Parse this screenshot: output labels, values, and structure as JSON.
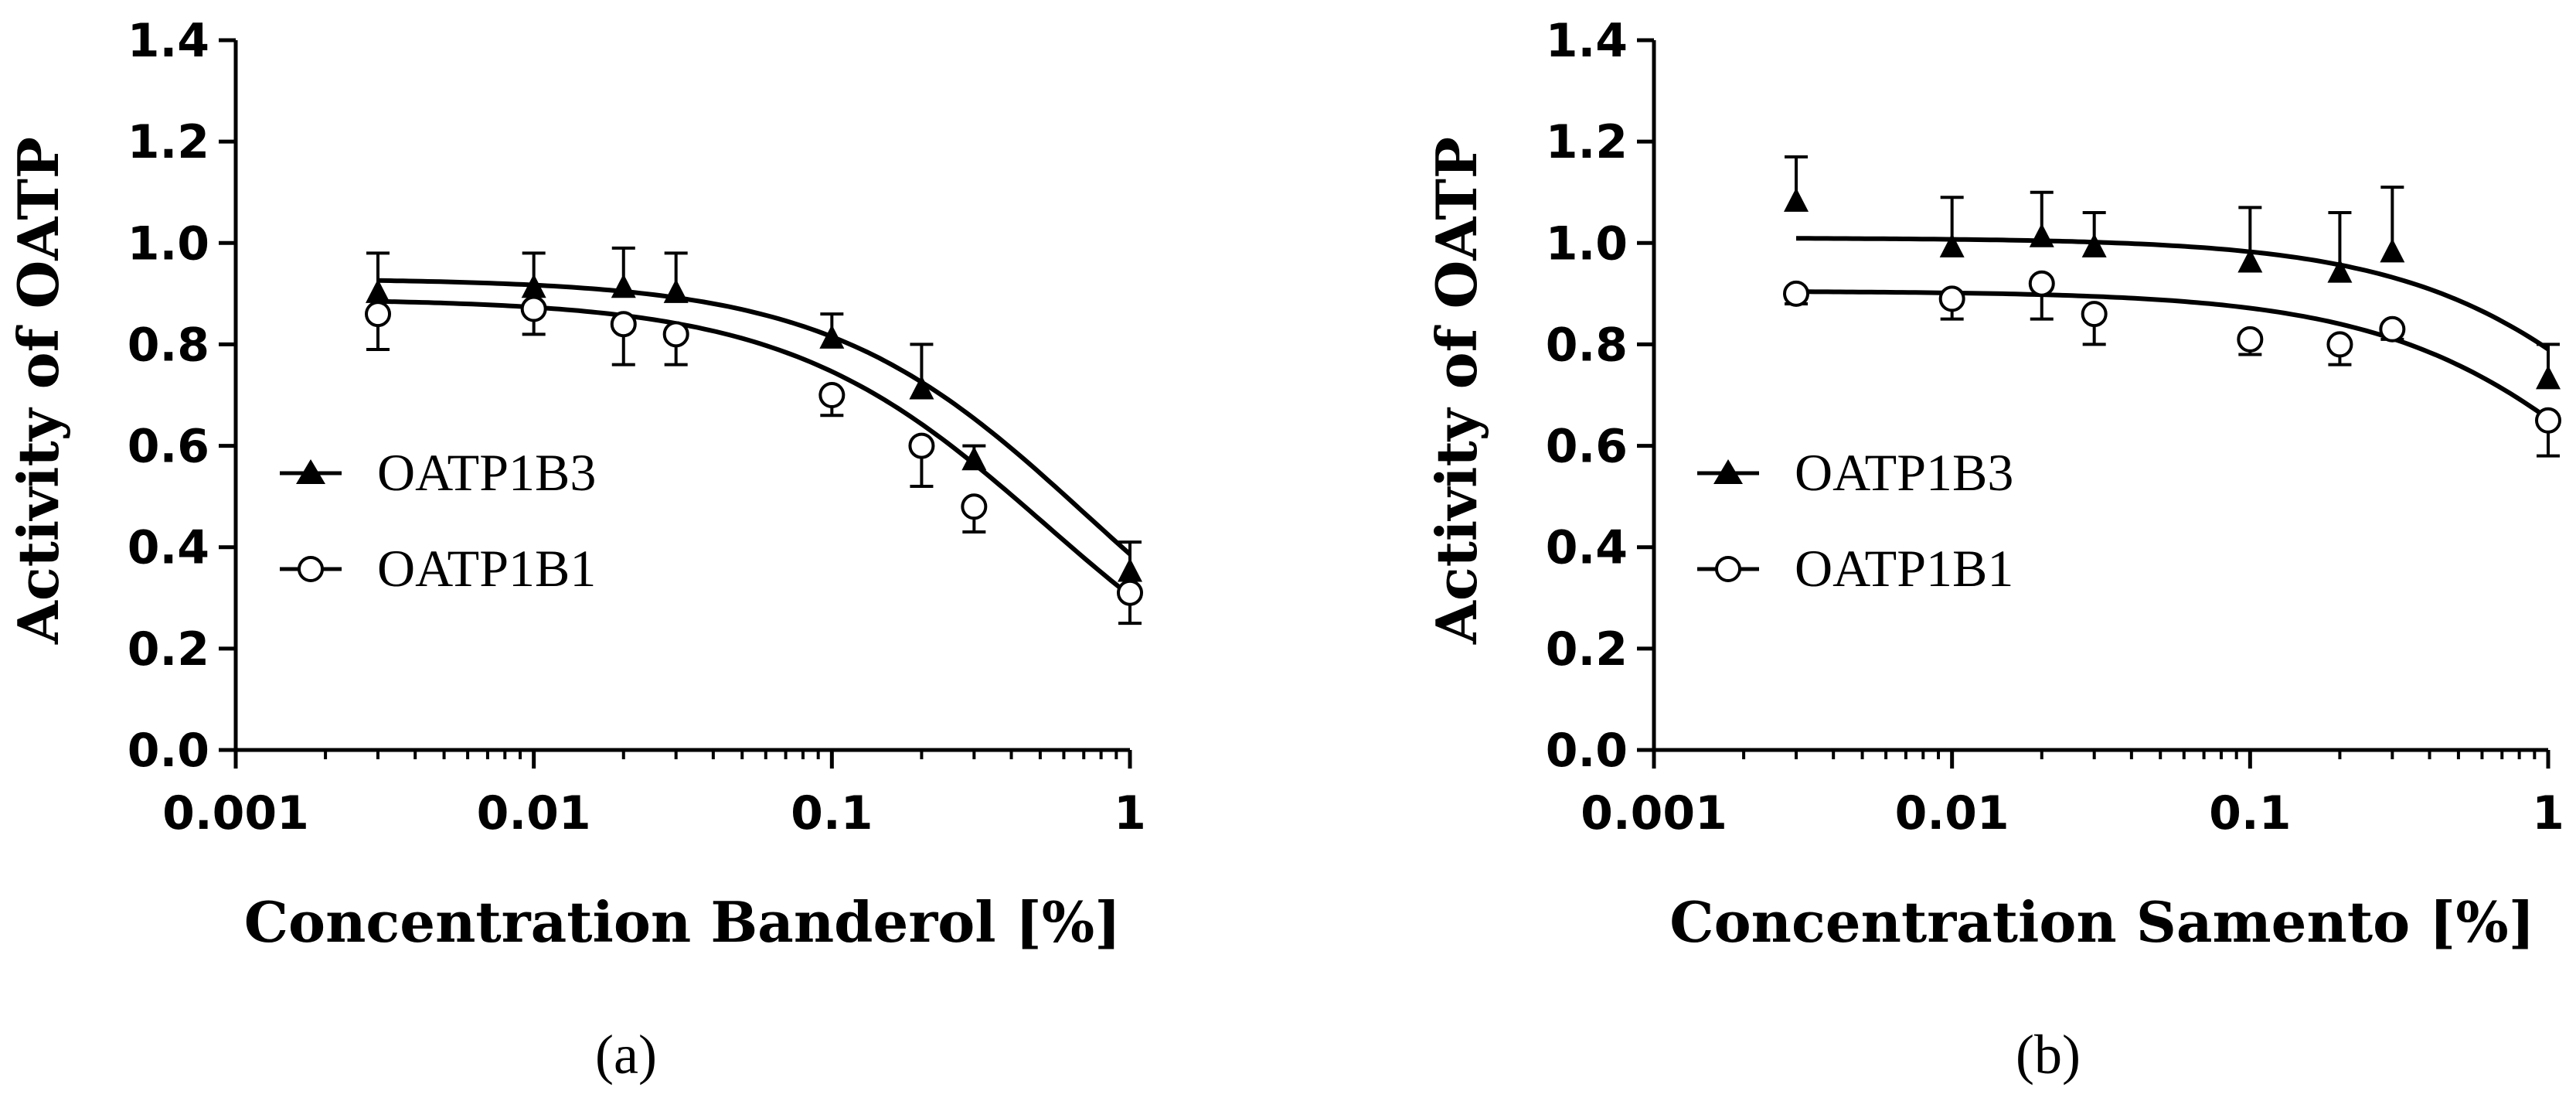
{
  "figure": {
    "panel_labels": [
      "(a)",
      "(b)"
    ]
  },
  "chart_data": [
    {
      "type": "scatter",
      "panel": "a",
      "xlabel": "Concentration Banderol [%]",
      "ylabel": "Activity of OATP",
      "xscale": "log",
      "xlim": [
        0.001,
        1
      ],
      "ylim": [
        0,
        1.4
      ],
      "xticks": [
        0.001,
        0.01,
        0.1,
        1
      ],
      "xtick_labels": [
        "0.001",
        "0.01",
        "0.1",
        "1"
      ],
      "yticks": [
        0,
        0.2,
        0.4,
        0.6,
        0.8,
        1.0,
        1.2,
        1.4
      ],
      "ytick_labels": [
        "0.0",
        "0.2",
        "0.4",
        "0.6",
        "0.8",
        "1.0",
        "1.2",
        "1.4"
      ],
      "legend_position": "center-left",
      "series": [
        {
          "name": "OATP1B3",
          "marker": "filled-triangle",
          "x": [
            0.003,
            0.01,
            0.02,
            0.03,
            0.1,
            0.2,
            0.3,
            1
          ],
          "y": [
            0.9,
            0.91,
            0.91,
            0.9,
            0.81,
            0.71,
            0.57,
            0.35
          ],
          "err": [
            0.08,
            0.07,
            0.08,
            0.08,
            0.05,
            0.09,
            0.03,
            0.06
          ],
          "fit": {
            "top": 0.93,
            "bottom": 0.0,
            "ec50": 0.71,
            "hill": 1.0
          }
        },
        {
          "name": "OATP1B1",
          "marker": "open-circle",
          "x": [
            0.003,
            0.01,
            0.02,
            0.03,
            0.1,
            0.2,
            0.3,
            1
          ],
          "y": [
            0.86,
            0.87,
            0.84,
            0.82,
            0.7,
            0.6,
            0.48,
            0.31
          ],
          "err": [
            0.07,
            0.05,
            0.08,
            0.06,
            0.04,
            0.08,
            0.05,
            0.06
          ],
          "fit": {
            "top": 0.89,
            "bottom": 0.0,
            "ec50": 0.52,
            "hill": 1.0
          }
        }
      ]
    },
    {
      "type": "scatter",
      "panel": "b",
      "xlabel": "Concentration Samento [%]",
      "ylabel": "Activity of OATP",
      "xscale": "log",
      "xlim": [
        0.001,
        1
      ],
      "ylim": [
        0,
        1.4
      ],
      "xticks": [
        0.001,
        0.01,
        0.1,
        1
      ],
      "xtick_labels": [
        "0.001",
        "0.01",
        "0.1",
        "1"
      ],
      "yticks": [
        0,
        0.2,
        0.4,
        0.6,
        0.8,
        1.0,
        1.2,
        1.4
      ],
      "ytick_labels": [
        "0.0",
        "0.2",
        "0.4",
        "0.6",
        "0.8",
        "1.0",
        "1.2",
        "1.4"
      ],
      "legend_position": "center-left",
      "series": [
        {
          "name": "OATP1B3",
          "marker": "filled-triangle",
          "x": [
            0.003,
            0.01,
            0.02,
            0.03,
            0.1,
            0.2,
            0.3,
            1
          ],
          "y": [
            1.08,
            0.99,
            1.01,
            0.99,
            0.96,
            0.94,
            0.98,
            0.73
          ],
          "err": [
            0.09,
            0.1,
            0.09,
            0.07,
            0.11,
            0.12,
            0.13,
            0.07
          ],
          "fit": {
            "top": 1.01,
            "bottom": 0.0,
            "ec50": 3.6,
            "hill": 1.0
          }
        },
        {
          "name": "OATP1B1",
          "marker": "open-circle",
          "x": [
            0.003,
            0.01,
            0.02,
            0.03,
            0.1,
            0.2,
            0.3,
            1
          ],
          "y": [
            0.9,
            0.89,
            0.92,
            0.86,
            0.81,
            0.8,
            0.83,
            0.65
          ],
          "err": [
            0.02,
            0.04,
            0.07,
            0.06,
            0.03,
            0.04,
            0.02,
            0.07
          ],
          "fit": {
            "top": 0.905,
            "bottom": 0.0,
            "ec50": 2.6,
            "hill": 1.0
          }
        }
      ]
    }
  ]
}
